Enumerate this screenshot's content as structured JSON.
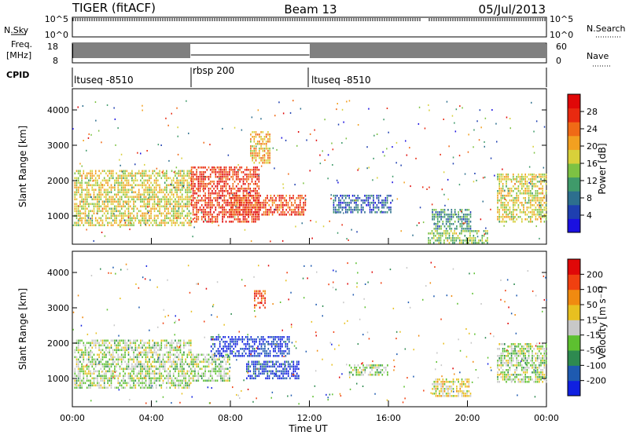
{
  "header": {
    "radar": "TIGER (fitACF)",
    "beam": "Beam 13",
    "date": "05/Jul/2013"
  },
  "strips": {
    "nsky_label": "N.Sky",
    "nsky_ticks": [
      "10^5",
      "10^0"
    ],
    "nsearch_label": "N.Search",
    "freq_label_1": "Freq.",
    "freq_label_2": "[MHz]",
    "freq_ticks": [
      "18",
      "8"
    ],
    "nave_label": "Nave",
    "nave_ticks": [
      "60",
      "0"
    ],
    "cpid_label": "CPID",
    "cpid_segments": [
      {
        "label": "ltuseq -8510",
        "start_h": 0,
        "end_h": 6
      },
      {
        "label": "rbsp 200",
        "start_h": 6,
        "end_h": 12
      },
      {
        "label": "ltuseq -8510",
        "start_h": 12,
        "end_h": 24
      }
    ]
  },
  "chart_data": [
    {
      "type": "heatmap",
      "name": "power",
      "ylabel": "Slant Range [km]",
      "y_ticks": [
        1000,
        2000,
        3000,
        4000
      ],
      "ylim": [
        200,
        4600
      ],
      "xlim": [
        0,
        24
      ],
      "colorbar": {
        "label": "Power [dB]",
        "ticks": [
          "4",
          "8",
          "12",
          "16",
          "20",
          "24",
          "28"
        ],
        "colors": [
          "#1a10e0",
          "#1e3fb0",
          "#2d6f8e",
          "#3f9a6a",
          "#7dc243",
          "#d8d03a",
          "#f2a020",
          "#f06a16",
          "#e82a10",
          "#e00808"
        ]
      },
      "blobs": [
        {
          "t0": 0.1,
          "t1": 6.0,
          "r0": 700,
          "r1": 2300,
          "level": 0.55
        },
        {
          "t0": 6.0,
          "t1": 9.5,
          "r0": 800,
          "r1": 2400,
          "level": 0.9
        },
        {
          "t0": 8.0,
          "t1": 11.8,
          "r0": 1000,
          "r1": 1600,
          "level": 0.85
        },
        {
          "t0": 9.0,
          "t1": 10.0,
          "r0": 2500,
          "r1": 3400,
          "level": 0.65
        },
        {
          "t0": 13.2,
          "t1": 16.2,
          "r0": 1100,
          "r1": 1600,
          "level": 0.15
        },
        {
          "t0": 18.2,
          "t1": 20.2,
          "r0": 600,
          "r1": 1200,
          "level": 0.3
        },
        {
          "t0": 18.0,
          "t1": 21.0,
          "r0": 250,
          "r1": 600,
          "level": 0.45
        },
        {
          "t0": 21.5,
          "t1": 24.0,
          "r0": 800,
          "r1": 2200,
          "level": 0.55
        }
      ]
    },
    {
      "type": "heatmap",
      "name": "velocity",
      "ylabel": "Slant Range [km]",
      "y_ticks": [
        1000,
        2000,
        3000,
        4000
      ],
      "ylim": [
        200,
        4600
      ],
      "xlim": [
        0,
        24
      ],
      "x_ticks": [
        "00:00",
        "04:00",
        "08:00",
        "12:00",
        "16:00",
        "20:00",
        "00:00"
      ],
      "xlabel": "Time UT",
      "colorbar": {
        "label": "Velocity [m s⁻¹]",
        "ticks": [
          "200",
          "100",
          "50",
          "15",
          "-15",
          "-50",
          "-100",
          "-200"
        ],
        "colors": [
          "#1020e0",
          "#1e5ab0",
          "#2e8a50",
          "#5dc030",
          "#c8c8c8",
          "#e8c020",
          "#f08a10",
          "#f04010",
          "#e00808"
        ]
      },
      "blobs": [
        {
          "t0": 0.1,
          "t1": 6.0,
          "r0": 700,
          "r1": 2100,
          "level": 0.45
        },
        {
          "t0": 6.0,
          "t1": 8.0,
          "r0": 900,
          "r1": 1700,
          "level": 0.45
        },
        {
          "t0": 7.0,
          "t1": 11.0,
          "r0": 1600,
          "r1": 2200,
          "level": 0.02
        },
        {
          "t0": 8.8,
          "t1": 11.5,
          "r0": 1000,
          "r1": 1500,
          "level": 0.05
        },
        {
          "t0": 9.2,
          "t1": 9.8,
          "r0": 3000,
          "r1": 3500,
          "level": 0.9
        },
        {
          "t0": 14.0,
          "t1": 16.0,
          "r0": 1100,
          "r1": 1400,
          "level": 0.45
        },
        {
          "t0": 18.2,
          "t1": 20.2,
          "r0": 500,
          "r1": 1000,
          "level": 0.55
        },
        {
          "t0": 21.5,
          "t1": 24.0,
          "r0": 900,
          "r1": 2000,
          "level": 0.45
        }
      ]
    }
  ]
}
